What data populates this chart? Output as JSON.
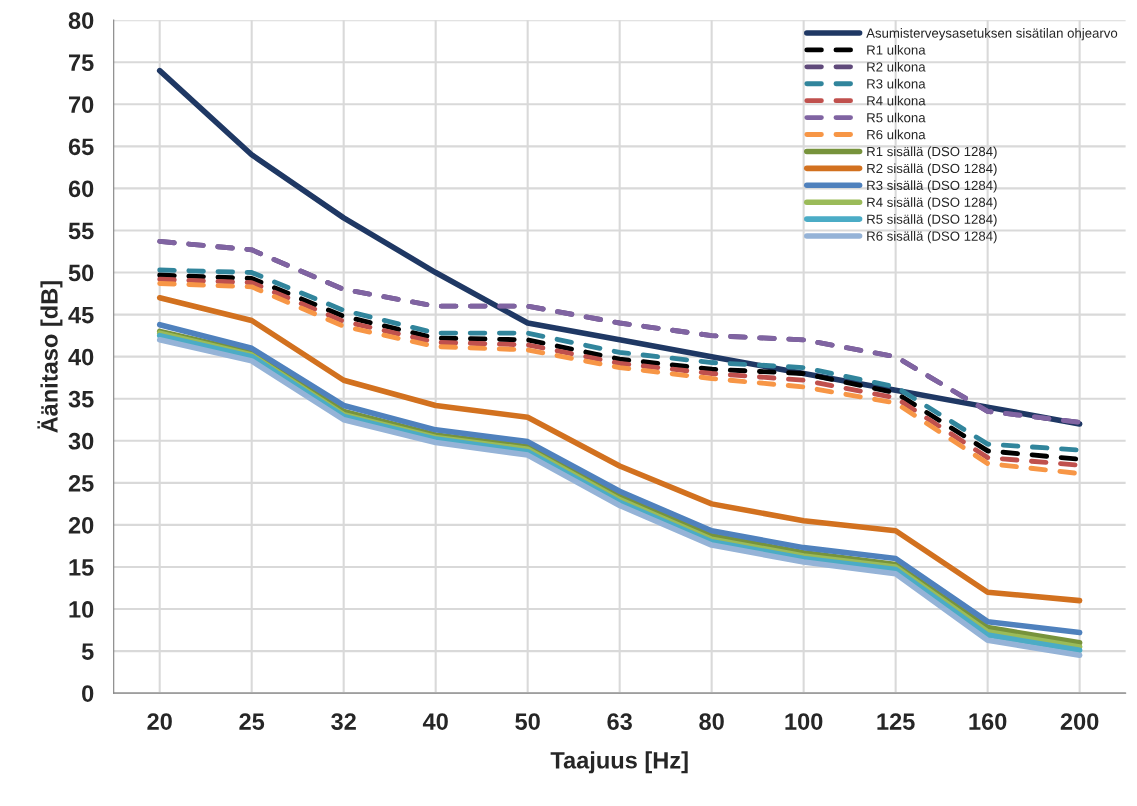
{
  "chart_data": {
    "type": "line",
    "xlabel": "Taajuus [Hz]",
    "ylabel": "Äänitaso [dB]",
    "categories": [
      "20",
      "25",
      "32",
      "40",
      "50",
      "63",
      "80",
      "100",
      "125",
      "160",
      "200"
    ],
    "ylim": [
      0,
      80
    ],
    "yticks": [
      0,
      5,
      10,
      15,
      20,
      25,
      30,
      35,
      40,
      45,
      50,
      55,
      60,
      65,
      70,
      75,
      80
    ],
    "grid": true,
    "legend": "top right",
    "series": [
      {
        "name": "Asumisterveysasetuksen sisätilan ohjearvo",
        "color": "#1f3864",
        "line_style": "solid",
        "values": [
          74,
          64,
          56.5,
          50,
          44,
          42,
          40,
          38,
          36,
          34,
          32
        ]
      },
      {
        "name": "R1 ulkona",
        "color": "#000000",
        "line_style": "dashed",
        "values": [
          49.7,
          49.3,
          44.8,
          42.2,
          42,
          39.7,
          38.5,
          38,
          35.7,
          28.8,
          27.8
        ]
      },
      {
        "name": "R2 ulkona",
        "color": "#604a7b",
        "line_style": "dashed",
        "values": [
          53.7,
          52.7,
          48,
          46,
          46,
          44,
          42.5,
          42,
          40,
          33.5,
          32.2
        ]
      },
      {
        "name": "R3 ulkona",
        "color": "#31859c",
        "line_style": "dashed",
        "values": [
          50.3,
          50,
          45.5,
          42.8,
          42.8,
          40.5,
          39.3,
          38.7,
          36.4,
          29.6,
          28.9
        ]
      },
      {
        "name": "R4 ulkona",
        "color": "#c0504d",
        "line_style": "dashed",
        "values": [
          49.2,
          48.8,
          44.2,
          41.7,
          41.4,
          39.2,
          38,
          37.2,
          35.1,
          28,
          27.1
        ]
      },
      {
        "name": "R5 ulkona",
        "color": "#8064a2",
        "line_style": "dashed",
        "values": [
          53.7,
          52.7,
          48,
          46,
          46,
          44,
          42.5,
          42,
          40,
          33.5,
          32.2
        ]
      },
      {
        "name": "R6 ulkona",
        "color": "#f79646",
        "line_style": "dashed",
        "values": [
          48.7,
          48.3,
          43.6,
          41.2,
          40.8,
          38.7,
          37.4,
          36.4,
          34.5,
          27.3,
          26.1
        ]
      },
      {
        "name": "R1 sisällä (DSO 1284)",
        "color": "#77933c",
        "line_style": "solid",
        "values": [
          43,
          40.5,
          33.5,
          30.7,
          29.3,
          23.4,
          18.7,
          16.7,
          15.3,
          7.8,
          6
        ]
      },
      {
        "name": "R2 sisällä (DSO 1284)",
        "color": "#d2711f",
        "line_style": "solid",
        "values": [
          47,
          44.3,
          37.2,
          34.2,
          32.8,
          27,
          22.5,
          20.5,
          19.3,
          12,
          11
        ]
      },
      {
        "name": "R3 sisällä (DSO 1284)",
        "color": "#4f81bd",
        "line_style": "solid",
        "values": [
          43.8,
          41,
          34.2,
          31.3,
          29.9,
          24,
          19.3,
          17.3,
          16,
          8.5,
          7.2
        ]
      },
      {
        "name": "R4 sisällä (DSO 1284)",
        "color": "#9bbb59",
        "line_style": "solid",
        "values": [
          42.8,
          40.2,
          33.1,
          30.4,
          29,
          23,
          18.3,
          16.3,
          15,
          7.3,
          5.5
        ]
      },
      {
        "name": "R5 sisällä (DSO 1284)",
        "color": "#4bacc6",
        "line_style": "solid",
        "values": [
          42.5,
          40,
          32.9,
          30.2,
          28.7,
          22.7,
          18,
          16,
          14.7,
          6.9,
          5.1
        ]
      },
      {
        "name": "R6 sisällä (DSO 1284)",
        "color": "#95b3d7",
        "line_style": "solid",
        "values": [
          42,
          39.5,
          32.5,
          29.8,
          28.3,
          22.3,
          17.6,
          15.6,
          14.2,
          6.3,
          4.5
        ]
      }
    ]
  }
}
